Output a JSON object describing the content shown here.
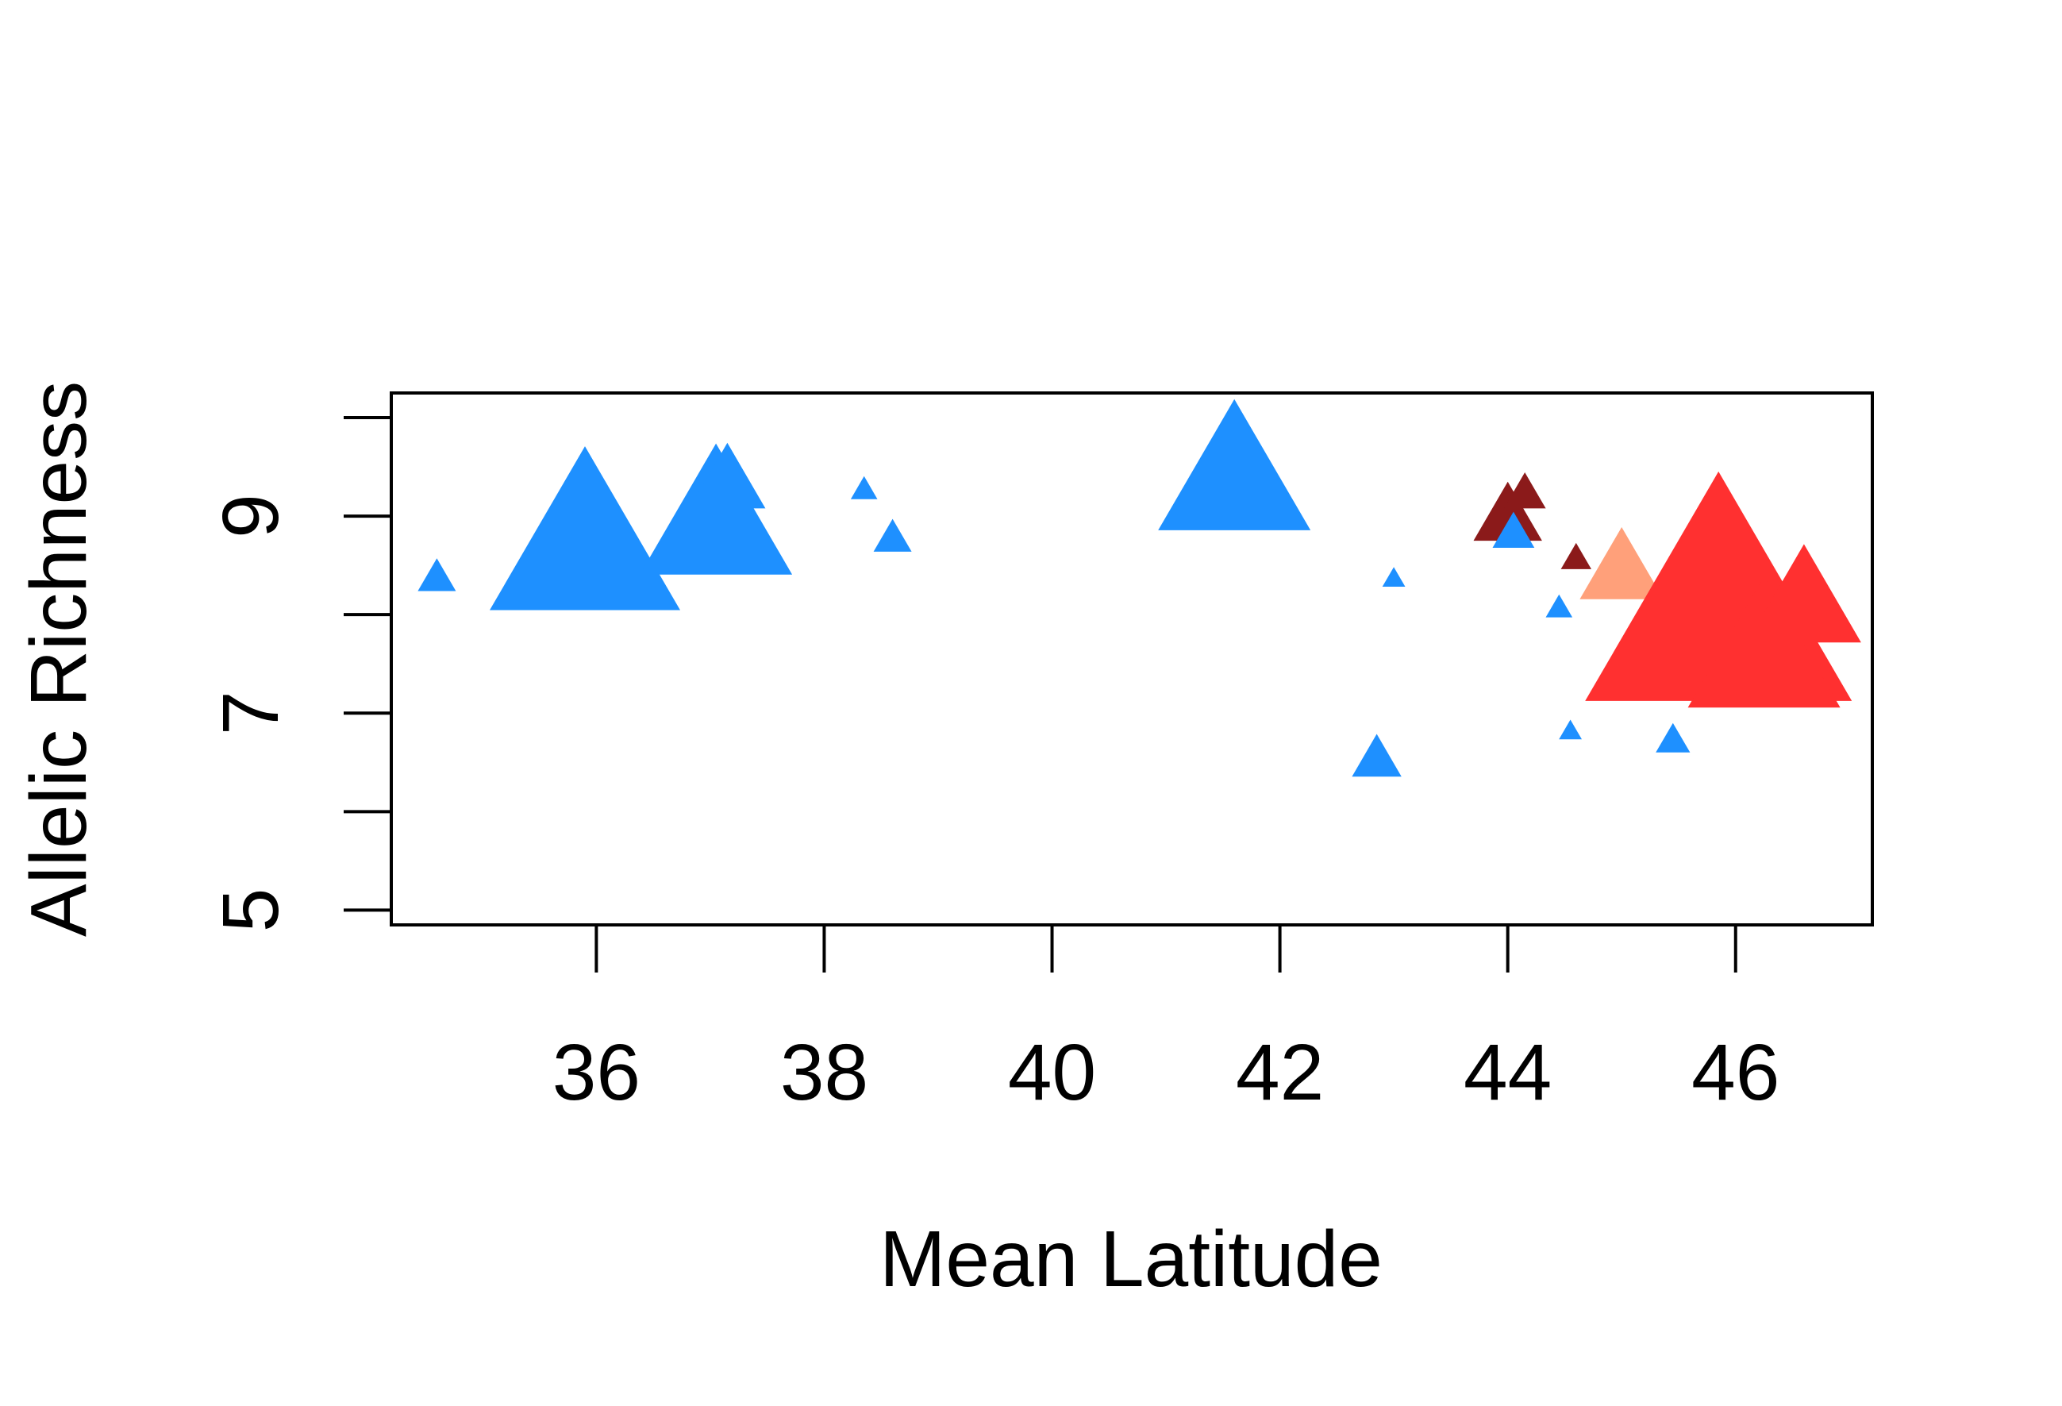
{
  "chart_data": {
    "type": "scatter",
    "title": "",
    "xlabel": "Mean Latitude",
    "ylabel": "Allelic Richness",
    "xlim": [
      34.2,
      47.2
    ],
    "ylim": [
      4.85,
      10.25
    ],
    "x_ticks": [
      36,
      38,
      40,
      42,
      44,
      46
    ],
    "x_tick_labels": [
      "36",
      "38",
      "40",
      "42",
      "44",
      "46"
    ],
    "y_ticks": [
      5,
      6,
      7,
      8,
      9,
      10
    ],
    "y_tick_labels": [
      "5",
      "",
      "7",
      "",
      "9",
      ""
    ],
    "grid": false,
    "legend": null,
    "marker": "triangle",
    "point_size_encoding": true,
    "colors": {
      "blue": "#1E90FF",
      "red": "#FF3030",
      "salmon": "#FFA07A",
      "darkred": "#8B1A1A"
    },
    "points": [
      {
        "x": 34.6,
        "y": 8.35,
        "color": "blue",
        "size": 1
      },
      {
        "x": 35.9,
        "y": 8.6,
        "color": "blue",
        "size": 5
      },
      {
        "x": 37.05,
        "y": 8.85,
        "color": "blue",
        "size": 4
      },
      {
        "x": 37.15,
        "y": 9.3,
        "color": "blue",
        "size": 2
      },
      {
        "x": 38.35,
        "y": 9.25,
        "color": "blue",
        "size": 0.7
      },
      {
        "x": 38.6,
        "y": 8.75,
        "color": "blue",
        "size": 1
      },
      {
        "x": 41.6,
        "y": 9.3,
        "color": "blue",
        "size": 4
      },
      {
        "x": 42.85,
        "y": 6.5,
        "color": "blue",
        "size": 1.3
      },
      {
        "x": 43.0,
        "y": 8.35,
        "color": "blue",
        "size": 0.6
      },
      {
        "x": 44.0,
        "y": 8.95,
        "color": "darkred",
        "size": 1.8
      },
      {
        "x": 44.15,
        "y": 9.2,
        "color": "darkred",
        "size": 1.1
      },
      {
        "x": 44.05,
        "y": 8.8,
        "color": "blue",
        "size": 1.1
      },
      {
        "x": 44.45,
        "y": 8.05,
        "color": "blue",
        "size": 0.7
      },
      {
        "x": 44.55,
        "y": 6.8,
        "color": "blue",
        "size": 0.6
      },
      {
        "x": 44.6,
        "y": 8.55,
        "color": "darkred",
        "size": 0.8
      },
      {
        "x": 45.0,
        "y": 8.4,
        "color": "salmon",
        "size": 2.2
      },
      {
        "x": 45.4,
        "y": 7.35,
        "color": "salmon",
        "size": 0.6
      },
      {
        "x": 45.45,
        "y": 6.7,
        "color": "blue",
        "size": 0.9
      },
      {
        "x": 45.85,
        "y": 7.9,
        "color": "red",
        "size": 7
      },
      {
        "x": 46.25,
        "y": 7.5,
        "color": "red",
        "size": 4
      },
      {
        "x": 46.6,
        "y": 8.05,
        "color": "red",
        "size": 3
      }
    ]
  }
}
